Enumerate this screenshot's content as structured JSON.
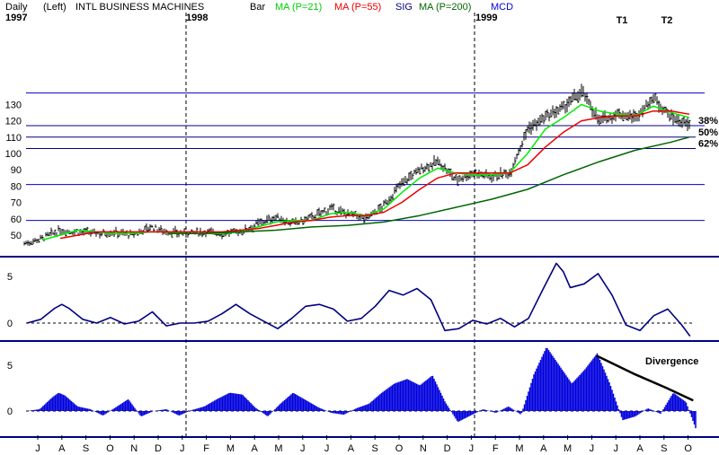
{
  "header": {
    "period": "Daily",
    "scale": "(Left)",
    "symbol": "INTL BUSINESS MACHINES",
    "bar": "Bar",
    "ma21": "MA (P=21)",
    "ma55": "MA (P=55)",
    "sig": "SIG",
    "ma200": "MA (P=200)",
    "mcd": "MCD"
  },
  "colors": {
    "ma21": "#00ee00",
    "ma55": "#ee0000",
    "ma200": "#006600",
    "sig": "#000080",
    "mcd": "#0000dd",
    "grid": "#0000cc",
    "fib": "#000080"
  },
  "chart_data": [
    {
      "type": "line",
      "panel": "price",
      "years": [
        "1997",
        "1998",
        "1999"
      ],
      "months": [
        "J",
        "A",
        "S",
        "O",
        "N",
        "D",
        "J",
        "F",
        "M",
        "A",
        "M",
        "J",
        "J",
        "A",
        "S",
        "O",
        "N",
        "D",
        "J",
        "F",
        "M",
        "A",
        "M",
        "J",
        "J",
        "A",
        "S",
        "O"
      ],
      "yticks": [
        50,
        60,
        70,
        80,
        90,
        100,
        110,
        120,
        130
      ],
      "ylim": [
        43,
        140
      ],
      "grid_levels": [
        59,
        81,
        117,
        137
      ],
      "fib_levels": [
        {
          "label": "38%",
          "value": 117
        },
        {
          "label": "50%",
          "value": 110
        },
        {
          "label": "62%",
          "value": 103
        }
      ],
      "annotations": [
        "T1",
        "T2"
      ],
      "price_knots": [
        [
          0,
          45
        ],
        [
          1,
          48
        ],
        [
          2,
          53
        ],
        [
          3,
          52
        ],
        [
          4,
          51
        ],
        [
          5,
          52
        ],
        [
          6,
          50
        ],
        [
          7,
          55
        ],
        [
          8,
          52
        ],
        [
          9,
          51
        ],
        [
          10,
          52
        ],
        [
          11,
          51
        ],
        [
          12,
          52
        ],
        [
          13,
          57
        ],
        [
          14,
          61
        ],
        [
          15,
          57
        ],
        [
          16,
          61
        ],
        [
          17,
          66
        ],
        [
          18,
          63
        ],
        [
          19,
          60
        ],
        [
          20,
          68
        ],
        [
          21,
          82
        ],
        [
          22,
          90
        ],
        [
          23,
          95
        ],
        [
          24,
          84
        ],
        [
          25,
          88
        ],
        [
          26,
          86
        ],
        [
          27,
          88
        ],
        [
          28,
          115
        ],
        [
          29,
          122
        ],
        [
          30,
          128
        ],
        [
          31,
          138
        ],
        [
          32,
          120
        ],
        [
          33,
          124
        ],
        [
          34,
          122
        ],
        [
          35,
          134
        ],
        [
          36,
          122
        ],
        [
          37,
          117
        ]
      ],
      "series": [
        {
          "name": "MA (P=21)",
          "values": [
            [
              1,
              47
            ],
            [
              2,
              50
            ],
            [
              3,
              53
            ],
            [
              4,
              52
            ],
            [
              5,
              51
            ],
            [
              6,
              51
            ],
            [
              7,
              52
            ],
            [
              8,
              52
            ],
            [
              9,
              51
            ],
            [
              10,
              51
            ],
            [
              11,
              51
            ],
            [
              12,
              52
            ],
            [
              13,
              55
            ],
            [
              14,
              58
            ],
            [
              15,
              59
            ],
            [
              16,
              59
            ],
            [
              17,
              63
            ],
            [
              18,
              64
            ],
            [
              19,
              62
            ],
            [
              20,
              66
            ],
            [
              21,
              76
            ],
            [
              22,
              85
            ],
            [
              23,
              91
            ],
            [
              24,
              88
            ],
            [
              25,
              87
            ],
            [
              26,
              87
            ],
            [
              27,
              88
            ],
            [
              28,
              100
            ],
            [
              29,
              115
            ],
            [
              30,
              122
            ],
            [
              31,
              130
            ],
            [
              32,
              126
            ],
            [
              33,
              124
            ],
            [
              34,
              123
            ],
            [
              35,
              129
            ],
            [
              36,
              125
            ],
            [
              37,
              122
            ]
          ]
        },
        {
          "name": "MA (P=55)",
          "values": [
            [
              2,
              48
            ],
            [
              3,
              50
            ],
            [
              4,
              52
            ],
            [
              5,
              52
            ],
            [
              6,
              52
            ],
            [
              7,
              52
            ],
            [
              8,
              52
            ],
            [
              9,
              52
            ],
            [
              10,
              52
            ],
            [
              11,
              52
            ],
            [
              12,
              53
            ],
            [
              13,
              54
            ],
            [
              14,
              56
            ],
            [
              15,
              58
            ],
            [
              16,
              59
            ],
            [
              17,
              61
            ],
            [
              18,
              62
            ],
            [
              19,
              62
            ],
            [
              20,
              64
            ],
            [
              21,
              70
            ],
            [
              22,
              78
            ],
            [
              23,
              85
            ],
            [
              24,
              88
            ],
            [
              25,
              88
            ],
            [
              26,
              88
            ],
            [
              27,
              88
            ],
            [
              28,
              93
            ],
            [
              29,
              104
            ],
            [
              30,
              113
            ],
            [
              31,
              120
            ],
            [
              32,
              122
            ],
            [
              33,
              123
            ],
            [
              34,
              123
            ],
            [
              35,
              126
            ],
            [
              36,
              126
            ],
            [
              37,
              124
            ]
          ]
        },
        {
          "name": "MA (P=200)",
          "values": [
            [
              8,
              51
            ],
            [
              10,
              51
            ],
            [
              12,
              52
            ],
            [
              14,
              53
            ],
            [
              16,
              55
            ],
            [
              18,
              56
            ],
            [
              20,
              58
            ],
            [
              22,
              62
            ],
            [
              24,
              67
            ],
            [
              26,
              72
            ],
            [
              28,
              78
            ],
            [
              30,
              87
            ],
            [
              32,
              95
            ],
            [
              34,
              102
            ],
            [
              36,
              107
            ],
            [
              37,
              110
            ]
          ]
        }
      ]
    },
    {
      "type": "line",
      "panel": "oscillator",
      "name": "SIG",
      "yticks": [
        0,
        5
      ],
      "ylim": [
        -1.8,
        7
      ],
      "values": [
        [
          0,
          0
        ],
        [
          1,
          0.4
        ],
        [
          2,
          1.6
        ],
        [
          2.5,
          2.0
        ],
        [
          3,
          1.6
        ],
        [
          4,
          0.4
        ],
        [
          5,
          0
        ],
        [
          6,
          0.6
        ],
        [
          7,
          -0.1
        ],
        [
          8,
          0.2
        ],
        [
          9,
          1.2
        ],
        [
          10,
          -0.3
        ],
        [
          11,
          0
        ],
        [
          12,
          0
        ],
        [
          13,
          0.2
        ],
        [
          14,
          1.0
        ],
        [
          15,
          2.0
        ],
        [
          16,
          1.0
        ],
        [
          17,
          0.2
        ],
        [
          18,
          -0.6
        ],
        [
          19,
          0.5
        ],
        [
          20,
          1.8
        ],
        [
          21,
          2.0
        ],
        [
          22,
          1.5
        ],
        [
          23,
          0.2
        ],
        [
          24,
          0.5
        ],
        [
          25,
          1.8
        ],
        [
          26,
          3.5
        ],
        [
          27,
          3.0
        ],
        [
          28,
          3.7
        ],
        [
          29,
          2.5
        ],
        [
          30,
          -0.8
        ],
        [
          31,
          -0.6
        ],
        [
          32,
          0.3
        ],
        [
          33,
          -0.1
        ],
        [
          34,
          0.5
        ],
        [
          35,
          -0.4
        ],
        [
          36,
          0.5
        ],
        [
          37,
          3.5
        ],
        [
          38,
          6.4
        ],
        [
          38.5,
          5.5
        ],
        [
          39,
          3.8
        ],
        [
          40,
          4.2
        ],
        [
          41,
          5.3
        ],
        [
          42,
          3.0
        ],
        [
          43,
          -0.2
        ],
        [
          44,
          -0.8
        ],
        [
          45,
          0.8
        ],
        [
          46,
          1.5
        ],
        [
          47,
          -0.2
        ],
        [
          47.6,
          -1.4
        ]
      ]
    },
    {
      "type": "area",
      "panel": "macd",
      "name": "MCD",
      "yticks": [
        0,
        5
      ],
      "ylim": [
        -2.5,
        7.5
      ],
      "values": [
        [
          0,
          0
        ],
        [
          1,
          0.2
        ],
        [
          2,
          1.5
        ],
        [
          2.5,
          2.0
        ],
        [
          3,
          1.7
        ],
        [
          4,
          0.5
        ],
        [
          5,
          0.2
        ],
        [
          6,
          -0.5
        ],
        [
          7,
          0.4
        ],
        [
          8,
          1.3
        ],
        [
          9,
          -0.6
        ],
        [
          10,
          0
        ],
        [
          11,
          0.2
        ],
        [
          12,
          -0.5
        ],
        [
          13,
          0.1
        ],
        [
          14,
          0.5
        ],
        [
          15,
          1.3
        ],
        [
          16,
          2.0
        ],
        [
          17,
          1.8
        ],
        [
          18,
          0.4
        ],
        [
          19,
          -0.6
        ],
        [
          20,
          0.8
        ],
        [
          21,
          2.0
        ],
        [
          22,
          1.2
        ],
        [
          23,
          0.4
        ],
        [
          24,
          -0.2
        ],
        [
          25,
          -0.4
        ],
        [
          26,
          0.3
        ],
        [
          27,
          0.8
        ],
        [
          28,
          2.0
        ],
        [
          29,
          3.0
        ],
        [
          30,
          3.5
        ],
        [
          31,
          2.8
        ],
        [
          32,
          3.9
        ],
        [
          33,
          1.0
        ],
        [
          34,
          -1.2
        ],
        [
          35,
          -0.5
        ],
        [
          36,
          0.2
        ],
        [
          37,
          -0.2
        ],
        [
          38,
          0.5
        ],
        [
          39,
          -0.4
        ],
        [
          40,
          4.0
        ],
        [
          41,
          7.0
        ],
        [
          42,
          5.0
        ],
        [
          43,
          3.0
        ],
        [
          44,
          4.5
        ],
        [
          45,
          6.3
        ],
        [
          46,
          3.0
        ],
        [
          47,
          -1.0
        ],
        [
          48,
          -0.6
        ],
        [
          49,
          0.3
        ],
        [
          50,
          -0.3
        ],
        [
          51,
          2.0
        ],
        [
          52,
          1.0
        ],
        [
          52.8,
          -2.0
        ]
      ],
      "divergence_label": "Divergence",
      "divergence_line": [
        [
          45.0,
          6.0
        ],
        [
          48.0,
          4.0
        ],
        [
          50.5,
          2.5
        ],
        [
          52.5,
          1.2
        ]
      ]
    }
  ]
}
